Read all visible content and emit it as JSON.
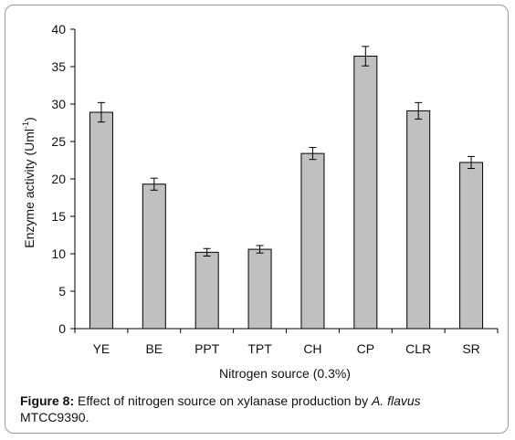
{
  "chart_data": {
    "type": "bar",
    "categories": [
      "YE",
      "BE",
      "PPT",
      "TPT",
      "CH",
      "CP",
      "CLR",
      "SR"
    ],
    "values": [
      28.9,
      19.3,
      10.2,
      10.6,
      23.4,
      36.4,
      29.1,
      22.2
    ],
    "errors": [
      1.3,
      0.8,
      0.5,
      0.5,
      0.8,
      1.3,
      1.1,
      0.8
    ],
    "xlabel": "Nitrogen source (0.3%)",
    "ylabel_main": "Enzyme activity (Uml",
    "ylabel_sup": "-1",
    "ylabel_close": ")",
    "ylim": [
      0,
      40
    ],
    "yticks": [
      0,
      5,
      10,
      15,
      20,
      25,
      30,
      35,
      40
    ],
    "bar_color": "#c0c0c0",
    "grid": false
  },
  "caption": {
    "label": "Figure 8:",
    "text": " Effect of nitrogen source on xylanase production by ",
    "organism": "A. flavus",
    "line2": "MTCC9390."
  }
}
